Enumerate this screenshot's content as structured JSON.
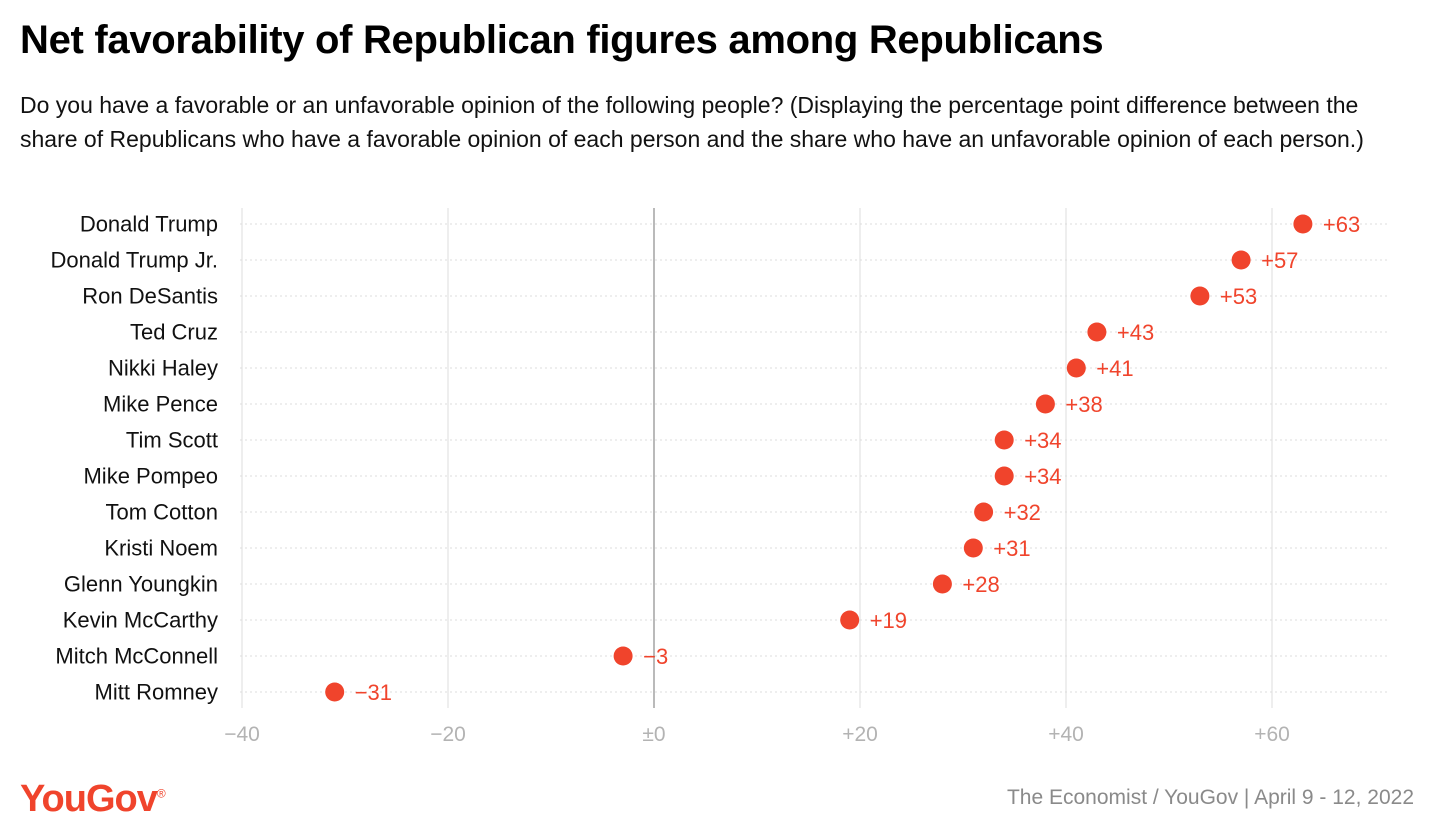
{
  "title": "Net favorability of Republican figures among Republicans",
  "subtitle": "Do you have a favorable or an unfavorable opinion of the following people? (Displaying the percentage point difference between the share of Republicans who have a favorable opinion of each person and the share who have an unfavorable opinion of each person.)",
  "footer": {
    "logo_text": "YouGov",
    "logo_mark": "®",
    "source": "The Economist / YouGov | April 9 - 12, 2022"
  },
  "colors": {
    "dot": "#f0442c",
    "label": "#f0442c",
    "grid": "#dcdcdc",
    "zero_line": "#a8a8a8",
    "tick_text": "#b3b3b3"
  },
  "chart_data": {
    "type": "scatter",
    "xlim": [
      -40,
      70
    ],
    "x_ticks": [
      -40,
      -20,
      0,
      20,
      40,
      60
    ],
    "x_tick_labels": [
      "−40",
      "−20",
      "±0",
      "+20",
      "+40",
      "+60"
    ],
    "categories": [
      "Donald Trump",
      "Donald Trump Jr.",
      "Ron DeSantis",
      "Ted Cruz",
      "Nikki Haley",
      "Mike Pence",
      "Tim Scott",
      "Mike Pompeo",
      "Tom Cotton",
      "Kristi Noem",
      "Glenn Youngkin",
      "Kevin McCarthy",
      "Mitch McConnell",
      "Mitt Romney"
    ],
    "values": [
      63,
      57,
      53,
      43,
      41,
      38,
      34,
      34,
      32,
      31,
      28,
      19,
      -3,
      -31
    ],
    "value_labels": [
      "+63",
      "+57",
      "+53",
      "+43",
      "+41",
      "+38",
      "+34",
      "+34",
      "+32",
      "+31",
      "+28",
      "+19",
      "−3",
      "−31"
    ],
    "grid": true,
    "legend": "none"
  }
}
